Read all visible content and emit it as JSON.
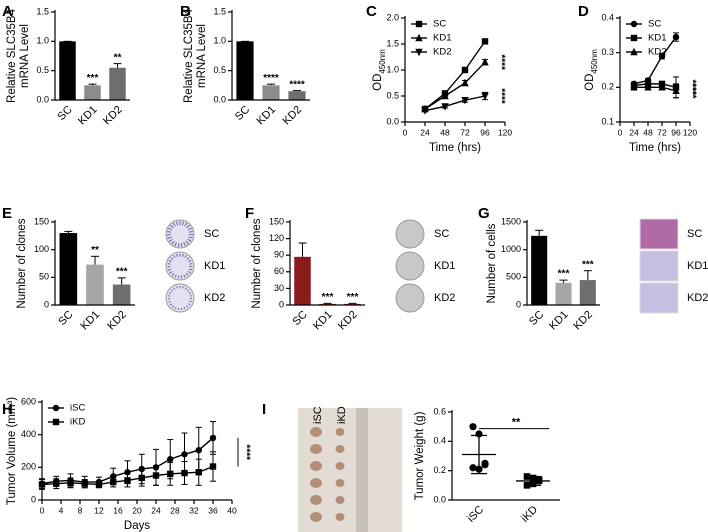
{
  "chart_data": [
    {
      "type": "bar",
      "panel": "A",
      "y_label": [
        "Relative SLC35B4",
        "mRNA Level"
      ],
      "categories": [
        "SC",
        "KD1",
        "KD2"
      ],
      "values": [
        1.0,
        0.25,
        0.55
      ],
      "errors": [
        0,
        0.02,
        0.07
      ],
      "colors": [
        "#000000",
        "#8c8c8c",
        "#6e6e6e"
      ],
      "ylim": [
        0,
        1.5
      ],
      "yticks": [
        {
          "value": 0,
          "label": "0.0"
        },
        {
          "value": 0.5,
          "label": "0.5"
        },
        {
          "value": 1,
          "label": "1.0"
        },
        {
          "value": 1.5,
          "label": "1.5"
        }
      ],
      "annotations": [
        {
          "category": "KD1",
          "text": "***"
        },
        {
          "category": "KD2",
          "text": "**"
        }
      ]
    },
    {
      "type": "bar",
      "panel": "B",
      "y_label": [
        "Relative SLC35B4",
        "mRNA Level"
      ],
      "categories": [
        "SC",
        "KD1",
        "KD2"
      ],
      "values": [
        1.0,
        0.25,
        0.15
      ],
      "errors": [
        0,
        0.02,
        0.01
      ],
      "colors": [
        "#000000",
        "#8c8c8c",
        "#6e6e6e"
      ],
      "ylim": [
        0,
        1.5
      ],
      "yticks": [
        {
          "value": 0,
          "label": "0.0"
        },
        {
          "value": 0.5,
          "label": "0.5"
        },
        {
          "value": 1,
          "label": "1.0"
        },
        {
          "value": 1.5,
          "label": "1.5"
        }
      ],
      "annotations": [
        {
          "category": "KD1",
          "text": "****"
        },
        {
          "category": "KD2",
          "text": "****"
        }
      ]
    },
    {
      "type": "line",
      "panel": "C",
      "y_label": {
        "text": "OD",
        "subscript": "450nm"
      },
      "x_label": "Time (hrs)",
      "x": [
        24,
        48,
        72,
        96
      ],
      "xlim": [
        0,
        120
      ],
      "xticks": [
        0,
        24,
        48,
        72,
        96,
        120
      ],
      "ylim": [
        0,
        2
      ],
      "yticks": [
        {
          "value": 0,
          "label": "0.0"
        },
        {
          "value": 0.5,
          "label": "0.5"
        },
        {
          "value": 1,
          "label": "1.0"
        },
        {
          "value": 1.5,
          "label": "1.5"
        },
        {
          "value": 2,
          "label": "2.0"
        }
      ],
      "series": [
        {
          "name": "SC",
          "color": "#000000",
          "marker": "square",
          "values": [
            0.25,
            0.55,
            1.0,
            1.55
          ],
          "errors": [
            0.02,
            0.04,
            0.05,
            0.04
          ]
        },
        {
          "name": "KD1",
          "color": "#000000",
          "marker": "triangle",
          "values": [
            0.25,
            0.5,
            0.75,
            1.15
          ],
          "errors": [
            0.02,
            0.04,
            0.05,
            0.05
          ]
        },
        {
          "name": "KD2",
          "color": "#000000",
          "marker": "triangle-down",
          "values": [
            0.22,
            0.3,
            0.42,
            0.5
          ],
          "errors": [
            0.02,
            0.03,
            0.04,
            0.07
          ]
        }
      ],
      "annotations": [
        {
          "series": "KD1",
          "text": "****"
        },
        {
          "series": "KD2",
          "text": "****"
        }
      ]
    },
    {
      "type": "line",
      "panel": "D",
      "y_label": {
        "text": "OD",
        "subscript": "450nm"
      },
      "x_label": "Time (hrs)",
      "x": [
        24,
        48,
        72,
        96
      ],
      "xlim": [
        0,
        120
      ],
      "xticks": [
        0,
        24,
        48,
        72,
        96,
        120
      ],
      "ylim": [
        0.1,
        0.4
      ],
      "yticks": [
        0.1,
        0.2,
        0.3,
        0.4
      ],
      "series": [
        {
          "name": "SC",
          "color": "#000000",
          "marker": "circle",
          "values": [
            0.21,
            0.22,
            0.29,
            0.345
          ],
          "errors": [
            0.005,
            0.005,
            0.008,
            0.012
          ]
        },
        {
          "name": "KD1",
          "color": "#000000",
          "marker": "square",
          "values": [
            0.205,
            0.21,
            0.21,
            0.2
          ],
          "errors": [
            0.005,
            0.005,
            0.005,
            0.03
          ]
        },
        {
          "name": "KD2",
          "color": "#000000",
          "marker": "triangle",
          "values": [
            0.2,
            0.2,
            0.2,
            0.19
          ],
          "errors": [
            0.005,
            0.005,
            0.005,
            0.02
          ]
        }
      ],
      "annotations": [
        {
          "series": "KD1",
          "text": "****"
        },
        {
          "series": "KD2",
          "text": "****"
        }
      ]
    },
    {
      "type": "bar",
      "panel": "E",
      "y_label": "Number of clones",
      "categories": [
        "SC",
        "KD1",
        "KD2"
      ],
      "values": [
        130,
        73,
        37
      ],
      "errors": [
        3,
        15,
        12
      ],
      "colors": [
        "#000000",
        "#a6a6a6",
        "#6e6e6e"
      ],
      "ylim": [
        0,
        150
      ],
      "yticks": [
        0,
        50,
        100,
        150
      ],
      "annotations": [
        {
          "category": "KD1",
          "text": "**"
        },
        {
          "category": "KD2",
          "text": "***"
        }
      ]
    },
    {
      "type": "bar",
      "panel": "F",
      "y_label": "Number of clones",
      "categories": [
        "SC",
        "KD1",
        "KD2"
      ],
      "values": [
        87,
        2,
        2
      ],
      "errors": [
        25,
        1,
        1
      ],
      "colors": [
        "#8b1a1a",
        "#8b1a1a",
        "#8b1a1a"
      ],
      "ylim": [
        0,
        150
      ],
      "yticks": [
        0,
        30,
        60,
        90,
        120,
        150
      ],
      "annotations": [
        {
          "category": "KD1",
          "text": "***"
        },
        {
          "category": "KD2",
          "text": "***"
        }
      ]
    },
    {
      "type": "bar",
      "panel": "G",
      "y_label": "Number of cells",
      "categories": [
        "SC",
        "KD1",
        "KD2"
      ],
      "values": [
        1250,
        400,
        450
      ],
      "errors": [
        100,
        50,
        170
      ],
      "colors": [
        "#000000",
        "#a6a6a6",
        "#6e6e6e"
      ],
      "ylim": [
        0,
        1500
      ],
      "yticks": [
        0,
        500,
        1000,
        1500
      ],
      "annotations": [
        {
          "category": "KD1",
          "text": "***"
        },
        {
          "category": "KD2",
          "text": "***"
        }
      ]
    },
    {
      "type": "line",
      "panel": "H",
      "y_label": "Tumor Volume (mm³)",
      "x_label": "Days",
      "x": [
        0,
        3,
        6,
        9,
        12,
        15,
        18,
        21,
        24,
        27,
        30,
        33,
        36
      ],
      "xlim": [
        0,
        40
      ],
      "xticks": [
        0,
        4,
        8,
        12,
        16,
        20,
        24,
        28,
        32,
        36,
        40
      ],
      "ylim": [
        0,
        600
      ],
      "yticks": [
        0,
        200,
        400,
        600
      ],
      "series": [
        {
          "name": "iSC",
          "color": "#000000",
          "marker": "circle",
          "values": [
            100,
            115,
            120,
            110,
            110,
            145,
            170,
            190,
            200,
            250,
            280,
            305,
            380
          ],
          "errors": [
            30,
            30,
            40,
            35,
            30,
            50,
            70,
            90,
            110,
            120,
            130,
            140,
            100
          ]
        },
        {
          "name": "iKD",
          "color": "#000000",
          "marker": "square",
          "values": [
            95,
            100,
            105,
            100,
            95,
            110,
            120,
            135,
            150,
            160,
            165,
            170,
            205
          ],
          "errors": [
            30,
            30,
            30,
            25,
            20,
            30,
            40,
            50,
            60,
            70,
            70,
            80,
            90
          ]
        }
      ],
      "annotations": [
        {
          "between": [
            "iSC",
            "iKD"
          ],
          "text": "****"
        }
      ]
    },
    {
      "type": "dot",
      "panel": "I",
      "y_label": "Tumor Weight (g)",
      "categories": [
        "iSC",
        "iKD"
      ],
      "points": [
        [
          0.5,
          0.45,
          0.25,
          0.22,
          0.21,
          0.24
        ],
        [
          0.16,
          0.15,
          0.13,
          0.1,
          0.11,
          0.14
        ]
      ],
      "means": [
        0.31,
        0.13
      ],
      "sd": [
        0.13,
        0.03
      ],
      "ylim": [
        0,
        0.6
      ],
      "yticks": [
        {
          "value": 0,
          "label": "0.0"
        },
        {
          "value": 0.2,
          "label": "0.2"
        },
        {
          "value": 0.4,
          "label": "0.4"
        },
        {
          "value": 0.6,
          "label": "0.6"
        }
      ],
      "annotations": [
        {
          "between": [
            "iSC",
            "iKD"
          ],
          "text": "**"
        }
      ]
    }
  ]
}
